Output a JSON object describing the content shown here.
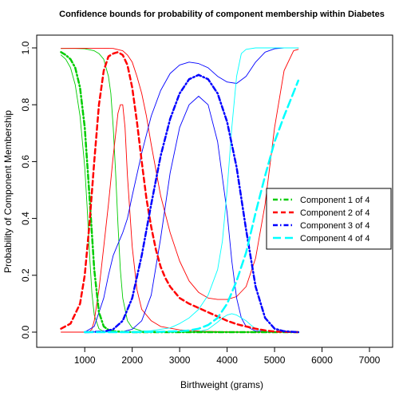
{
  "chart_data": {
    "type": "line",
    "title": "Confidence bounds for probability of component membership within Diabetes",
    "xlabel": "Birthweight (grams)",
    "ylabel": "Probability of Component Membership",
    "xlim": [
      500,
      7000
    ],
    "ylim": [
      0,
      1
    ],
    "x_ticks": [
      "1000",
      "2000",
      "3000",
      "4000",
      "5000",
      "6000",
      "7000"
    ],
    "y_ticks": [
      "0.0",
      "0.2",
      "0.4",
      "0.6",
      "0.8",
      "1.0"
    ],
    "legend_position": "right",
    "series": [
      {
        "name": "Component 1 of 4",
        "role": "estimate",
        "color": "#00cc00",
        "style": "dash-dot",
        "x": [
          500,
          600,
          700,
          800,
          900,
          1000,
          1100,
          1200,
          1300,
          1400,
          1500,
          1600,
          1800,
          2000,
          2500,
          3000,
          3500,
          4000,
          4500,
          5000,
          5500
        ],
        "y": [
          0.985,
          0.975,
          0.96,
          0.93,
          0.86,
          0.72,
          0.48,
          0.22,
          0.07,
          0.02,
          0.008,
          0.003,
          0.001,
          0,
          0,
          0,
          0,
          0,
          0,
          0,
          0
        ]
      },
      {
        "name": "Component 2 of 4",
        "role": "estimate",
        "color": "#ff0000",
        "style": "dashed",
        "x": [
          500,
          700,
          900,
          1000,
          1100,
          1200,
          1300,
          1400,
          1500,
          1600,
          1700,
          1800,
          1900,
          2000,
          2100,
          2200,
          2300,
          2400,
          2500,
          2600,
          2700,
          2800,
          3000,
          3200,
          3400,
          3600,
          3800,
          4000,
          4200,
          4400,
          4600,
          4800,
          5000,
          5500
        ],
        "y": [
          0.012,
          0.03,
          0.1,
          0.2,
          0.38,
          0.6,
          0.8,
          0.92,
          0.97,
          0.98,
          0.985,
          0.975,
          0.94,
          0.86,
          0.74,
          0.6,
          0.47,
          0.37,
          0.29,
          0.23,
          0.19,
          0.16,
          0.12,
          0.1,
          0.085,
          0.07,
          0.055,
          0.04,
          0.028,
          0.02,
          0.012,
          0.006,
          0.002,
          0
        ]
      },
      {
        "name": "Component 3 of 4",
        "role": "estimate",
        "color": "#0000ff",
        "style": "dash-dot",
        "x": [
          1000,
          1400,
          1600,
          1800,
          2000,
          2200,
          2400,
          2600,
          2800,
          3000,
          3200,
          3400,
          3600,
          3800,
          4000,
          4200,
          4400,
          4600,
          4800,
          5000,
          5200,
          5500
        ],
        "y": [
          0,
          0.002,
          0.01,
          0.04,
          0.12,
          0.27,
          0.45,
          0.62,
          0.75,
          0.84,
          0.89,
          0.905,
          0.89,
          0.84,
          0.74,
          0.58,
          0.36,
          0.16,
          0.05,
          0.012,
          0.003,
          0
        ]
      },
      {
        "name": "Component 4 of 4",
        "role": "estimate",
        "color": "#00ffff",
        "style": "long-dash",
        "x": [
          1000,
          2000,
          2500,
          3000,
          3200,
          3400,
          3600,
          3800,
          4000,
          4200,
          4400,
          4600,
          4800,
          5000,
          5200,
          5500
        ],
        "y": [
          0,
          0,
          0.001,
          0.003,
          0.006,
          0.012,
          0.025,
          0.05,
          0.1,
          0.18,
          0.28,
          0.42,
          0.55,
          0.67,
          0.76,
          0.885
        ]
      },
      {
        "name": "",
        "role": "lower-bound",
        "color": "#00cc00",
        "style": "solid",
        "x": [
          500,
          600,
          700,
          800,
          900,
          1000,
          1050,
          1100,
          1150,
          1200,
          1300,
          1400,
          1600,
          2000,
          3000,
          5500
        ],
        "y": [
          0.975,
          0.96,
          0.93,
          0.87,
          0.76,
          0.58,
          0.44,
          0.28,
          0.14,
          0.06,
          0.012,
          0.002,
          0,
          0,
          0,
          0
        ]
      },
      {
        "name": "",
        "role": "upper-bound",
        "color": "#00cc00",
        "style": "solid",
        "x": [
          500,
          800,
          1000,
          1200,
          1300,
          1400,
          1500,
          1550,
          1600,
          1650,
          1700,
          1750,
          1800,
          1900,
          2000,
          2200,
          3000,
          5500
        ],
        "y": [
          0.998,
          0.998,
          0.997,
          0.99,
          0.98,
          0.96,
          0.9,
          0.84,
          0.72,
          0.56,
          0.38,
          0.22,
          0.12,
          0.04,
          0.015,
          0.004,
          0,
          0
        ]
      },
      {
        "name": "",
        "role": "lower-bound",
        "color": "#ff0000",
        "style": "solid",
        "x": [
          500,
          1000,
          1100,
          1150,
          1200,
          1300,
          1400,
          1500,
          1600,
          1700,
          1750,
          1800,
          1850,
          1900,
          2000,
          2100,
          2200,
          2400,
          2600,
          3000,
          3500,
          4000,
          4500,
          5500
        ],
        "y": [
          0,
          0,
          0.002,
          0.01,
          0.04,
          0.15,
          0.3,
          0.45,
          0.62,
          0.77,
          0.8,
          0.8,
          0.72,
          0.55,
          0.3,
          0.15,
          0.08,
          0.04,
          0.02,
          0.008,
          0.003,
          0.001,
          0,
          0
        ]
      },
      {
        "name": "",
        "role": "upper-bound",
        "color": "#ff0000",
        "style": "solid",
        "x": [
          500,
          1000,
          1200,
          1400,
          1600,
          1800,
          1900,
          2000,
          2100,
          2200,
          2300,
          2400,
          2500,
          2600,
          2800,
          3000,
          3200,
          3400,
          3600,
          3800,
          4000,
          4200,
          4400,
          4600,
          4800,
          5000,
          5200,
          5400,
          5500
        ],
        "y": [
          0.998,
          0.999,
          0.999,
          0.999,
          0.998,
          0.99,
          0.975,
          0.95,
          0.9,
          0.84,
          0.76,
          0.66,
          0.57,
          0.48,
          0.35,
          0.25,
          0.18,
          0.14,
          0.12,
          0.115,
          0.115,
          0.125,
          0.16,
          0.26,
          0.45,
          0.72,
          0.92,
          0.99,
          0.995
        ]
      },
      {
        "name": "",
        "role": "lower-bound",
        "color": "#0000ff",
        "style": "solid",
        "x": [
          1000,
          1800,
          2000,
          2200,
          2400,
          2600,
          2800,
          3000,
          3200,
          3400,
          3600,
          3800,
          4000,
          4100,
          4200,
          4300,
          4400,
          4600,
          5000,
          5500
        ],
        "y": [
          0,
          0.002,
          0.01,
          0.04,
          0.13,
          0.33,
          0.56,
          0.72,
          0.8,
          0.83,
          0.8,
          0.67,
          0.42,
          0.25,
          0.12,
          0.05,
          0.02,
          0.004,
          0,
          0
        ]
      },
      {
        "name": "",
        "role": "upper-bound",
        "color": "#0000ff",
        "style": "solid",
        "x": [
          1000,
          1200,
          1400,
          1500,
          1600,
          1700,
          1800,
          1900,
          2000,
          2200,
          2400,
          2600,
          2800,
          3000,
          3200,
          3400,
          3600,
          3800,
          4000,
          4200,
          4400,
          4600,
          4800,
          5000,
          5200,
          5500
        ],
        "y": [
          0,
          0.02,
          0.12,
          0.2,
          0.27,
          0.31,
          0.35,
          0.4,
          0.48,
          0.63,
          0.76,
          0.85,
          0.91,
          0.94,
          0.95,
          0.945,
          0.93,
          0.9,
          0.88,
          0.875,
          0.9,
          0.95,
          0.985,
          0.997,
          1.0,
          1.0
        ]
      },
      {
        "name": "",
        "role": "lower-bound",
        "color": "#00ffff",
        "style": "solid",
        "x": [
          1000,
          3000,
          3400,
          3600,
          3800,
          3900,
          4000,
          4100,
          4200,
          4300,
          4400,
          4500,
          4600,
          4800,
          5000,
          5500
        ],
        "y": [
          0,
          0,
          0.002,
          0.01,
          0.035,
          0.05,
          0.06,
          0.065,
          0.06,
          0.05,
          0.04,
          0.025,
          0.012,
          0.002,
          0,
          0
        ]
      },
      {
        "name": "",
        "role": "upper-bound",
        "color": "#00ffff",
        "style": "solid",
        "x": [
          1000,
          2000,
          2400,
          2800,
          3000,
          3200,
          3400,
          3600,
          3800,
          3900,
          4000,
          4100,
          4200,
          4300,
          4400,
          4600,
          5000,
          5500
        ],
        "y": [
          0,
          0.001,
          0.005,
          0.015,
          0.03,
          0.05,
          0.08,
          0.13,
          0.22,
          0.32,
          0.5,
          0.72,
          0.9,
          0.98,
          0.995,
          1.0,
          1.0,
          1.0
        ]
      }
    ]
  }
}
